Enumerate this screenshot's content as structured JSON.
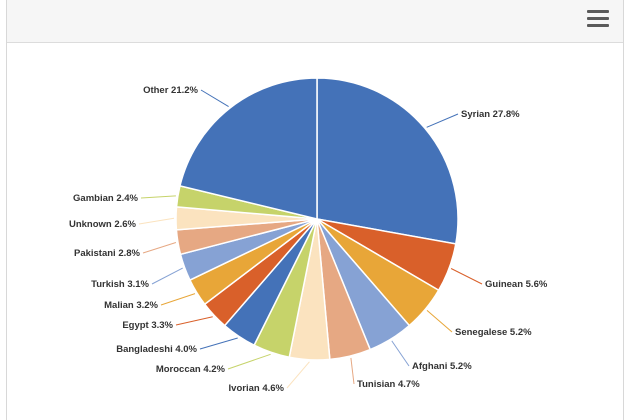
{
  "toolbar": {
    "menu_icon": "hamburger-menu-icon"
  },
  "chart_data": {
    "type": "pie",
    "title": "",
    "slices": [
      {
        "name": "Syrian",
        "label": "Syrian 27.8%",
        "value": 27.8,
        "color": "#4472b8"
      },
      {
        "name": "Guinean",
        "label": "Guinean 5.6%",
        "value": 5.6,
        "color": "#d9602a"
      },
      {
        "name": "Senegalese",
        "label": "Senegalese 5.2%",
        "value": 5.2,
        "color": "#e8a638"
      },
      {
        "name": "Afghani",
        "label": "Afghani 5.2%",
        "value": 5.2,
        "color": "#86a2d4"
      },
      {
        "name": "Tunisian",
        "label": "Tunisian 4.7%",
        "value": 4.7,
        "color": "#e6a883"
      },
      {
        "name": "Ivorian",
        "label": "Ivorian 4.6%",
        "value": 4.6,
        "color": "#fbe3bf"
      },
      {
        "name": "Moroccan",
        "label": "Moroccan 4.2%",
        "value": 4.2,
        "color": "#c6d36a"
      },
      {
        "name": "Bangladeshi",
        "label": "Bangladeshi 4.0%",
        "value": 4.0,
        "color": "#4472b8"
      },
      {
        "name": "Egypt",
        "label": "Egypt 3.3%",
        "value": 3.3,
        "color": "#d9602a"
      },
      {
        "name": "Malian",
        "label": "Malian 3.2%",
        "value": 3.2,
        "color": "#e8a638"
      },
      {
        "name": "Turkish",
        "label": "Turkish 3.1%",
        "value": 3.1,
        "color": "#86a2d4"
      },
      {
        "name": "Pakistani",
        "label": "Pakistani 2.8%",
        "value": 2.8,
        "color": "#e6a883"
      },
      {
        "name": "Unknown",
        "label": "Unknown 2.6%",
        "value": 2.6,
        "color": "#fbe3bf"
      },
      {
        "name": "Gambian",
        "label": "Gambian 2.4%",
        "value": 2.4,
        "color": "#c6d36a"
      },
      {
        "name": "Other",
        "label": "Other 21.2%",
        "value": 21.2,
        "color": "#4472b8"
      }
    ]
  }
}
